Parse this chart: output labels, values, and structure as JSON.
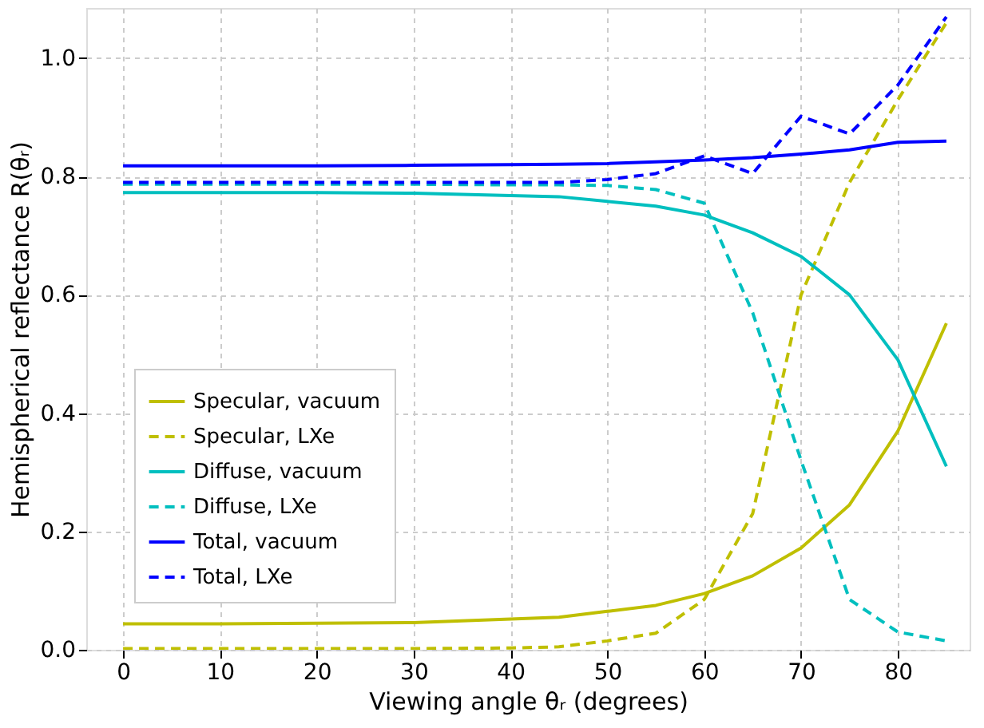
{
  "chart_data": {
    "type": "line",
    "xlabel": "Viewing angle θᵣ (degrees)",
    "ylabel": "Hemispherical reflectance R(θᵣ)",
    "x": [
      0,
      10,
      20,
      30,
      40,
      45,
      50,
      55,
      60,
      65,
      70,
      75,
      80,
      85
    ],
    "series": [
      {
        "name": "Specular, vacuum",
        "color": "#bfbf00",
        "line_style": "solid",
        "values": [
          0.044,
          0.044,
          0.045,
          0.046,
          0.052,
          0.055,
          0.065,
          0.075,
          0.095,
          0.125,
          0.172,
          0.245,
          0.37,
          0.552
        ]
      },
      {
        "name": "Specular, LXe",
        "color": "#bfbf00",
        "line_style": "dashed",
        "values": [
          0.002,
          0.002,
          0.002,
          0.002,
          0.003,
          0.005,
          0.015,
          0.028,
          0.085,
          0.23,
          0.6,
          0.79,
          0.93,
          1.06
        ]
      },
      {
        "name": "Diffuse, vacuum",
        "color": "#00bfbf",
        "line_style": "solid",
        "values": [
          0.773,
          0.773,
          0.773,
          0.772,
          0.768,
          0.766,
          0.758,
          0.75,
          0.735,
          0.705,
          0.665,
          0.6,
          0.49,
          0.31
        ]
      },
      {
        "name": "Diffuse, LXe",
        "color": "#00bfbf",
        "line_style": "dashed",
        "values": [
          0.787,
          0.787,
          0.787,
          0.787,
          0.786,
          0.786,
          0.785,
          0.778,
          0.755,
          0.57,
          0.32,
          0.085,
          0.03,
          0.015
        ]
      },
      {
        "name": "Total, vacuum",
        "color": "#0000ff",
        "line_style": "solid",
        "values": [
          0.818,
          0.818,
          0.818,
          0.819,
          0.82,
          0.821,
          0.822,
          0.825,
          0.828,
          0.832,
          0.838,
          0.845,
          0.858,
          0.86
        ]
      },
      {
        "name": "Total, LXe",
        "color": "#0000ff",
        "line_style": "dashed",
        "values": [
          0.79,
          0.79,
          0.79,
          0.79,
          0.79,
          0.79,
          0.795,
          0.805,
          0.835,
          0.805,
          0.902,
          0.872,
          0.955,
          1.07
        ]
      }
    ],
    "xlim": [
      -3.8,
      87.4
    ],
    "xticks": [
      0,
      10,
      20,
      30,
      40,
      50,
      60,
      70,
      80
    ],
    "ylim": [
      0,
      1.085
    ],
    "yticks": [
      {
        "value": 0,
        "label": "0.0"
      },
      0.2,
      0.4,
      0.6,
      {
        "value": 0.8,
        "label": "0.8"
      },
      {
        "value": 1.0,
        "label": "1.0"
      }
    ],
    "grid": true,
    "legend": "bottom left"
  }
}
